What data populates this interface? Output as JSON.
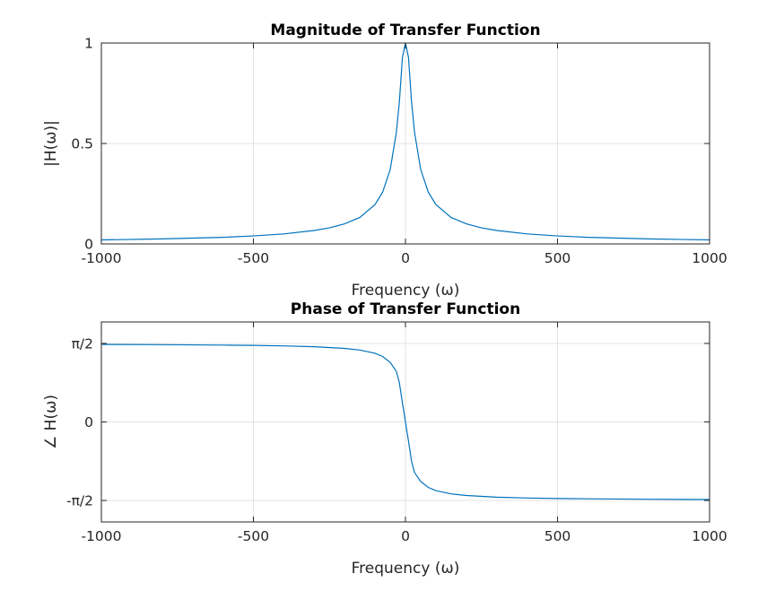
{
  "chart_data": [
    {
      "type": "line",
      "title": "Magnitude of Transfer Function",
      "xlabel": "Frequency (ω)",
      "ylabel": "|H(ω)|",
      "xlim": [
        -1000,
        1000
      ],
      "ylim": [
        0,
        1
      ],
      "xticks": [
        -1000,
        -500,
        0,
        500,
        1000
      ],
      "xticklabels": [
        "-1000",
        "-500",
        "0",
        "500",
        "1000"
      ],
      "yticks": [
        0,
        0.5,
        1
      ],
      "yticklabels": [
        "0",
        "0.5",
        "1"
      ],
      "grid": true,
      "color": "#0072bd",
      "x": [
        -1000,
        -800,
        -600,
        -500,
        -400,
        -300,
        -250,
        -200,
        -150,
        -100,
        -75,
        -50,
        -30,
        -20,
        -10,
        0,
        10,
        20,
        30,
        50,
        75,
        100,
        150,
        200,
        250,
        300,
        400,
        500,
        600,
        800,
        1000
      ],
      "y": [
        0.02,
        0.025,
        0.033,
        0.04,
        0.05,
        0.067,
        0.08,
        0.1,
        0.132,
        0.196,
        0.258,
        0.371,
        0.555,
        0.707,
        0.928,
        1.0,
        0.928,
        0.707,
        0.555,
        0.371,
        0.258,
        0.196,
        0.132,
        0.1,
        0.08,
        0.067,
        0.05,
        0.04,
        0.033,
        0.025,
        0.02
      ]
    },
    {
      "type": "line",
      "title": "Phase of Transfer Function",
      "xlabel": "Frequency (ω)",
      "ylabel": "∠ H(ω)",
      "xlim": [
        -1000,
        1000
      ],
      "ylim": [
        -2,
        2
      ],
      "xticks": [
        -1000,
        -500,
        0,
        500,
        1000
      ],
      "xticklabels": [
        "-1000",
        "-500",
        "0",
        "500",
        "1000"
      ],
      "yticks": [
        -1.5708,
        0,
        1.5708
      ],
      "yticklabels": [
        "-π/2",
        "0",
        "π/2"
      ],
      "grid": true,
      "color": "#0072bd",
      "x": [
        -1000,
        -800,
        -600,
        -500,
        -400,
        -300,
        -200,
        -150,
        -100,
        -75,
        -50,
        -30,
        -20,
        -10,
        -5,
        0,
        5,
        10,
        20,
        30,
        50,
        75,
        100,
        150,
        200,
        300,
        400,
        500,
        600,
        800,
        1000
      ],
      "y": [
        1.551,
        1.546,
        1.537,
        1.531,
        1.521,
        1.504,
        1.471,
        1.438,
        1.373,
        1.31,
        1.19,
        1.012,
        0.785,
        0.381,
        0.197,
        0,
        -0.197,
        -0.381,
        -0.785,
        -1.012,
        -1.19,
        -1.31,
        -1.373,
        -1.438,
        -1.471,
        -1.504,
        -1.521,
        -1.531,
        -1.537,
        -1.546,
        -1.551
      ]
    }
  ]
}
